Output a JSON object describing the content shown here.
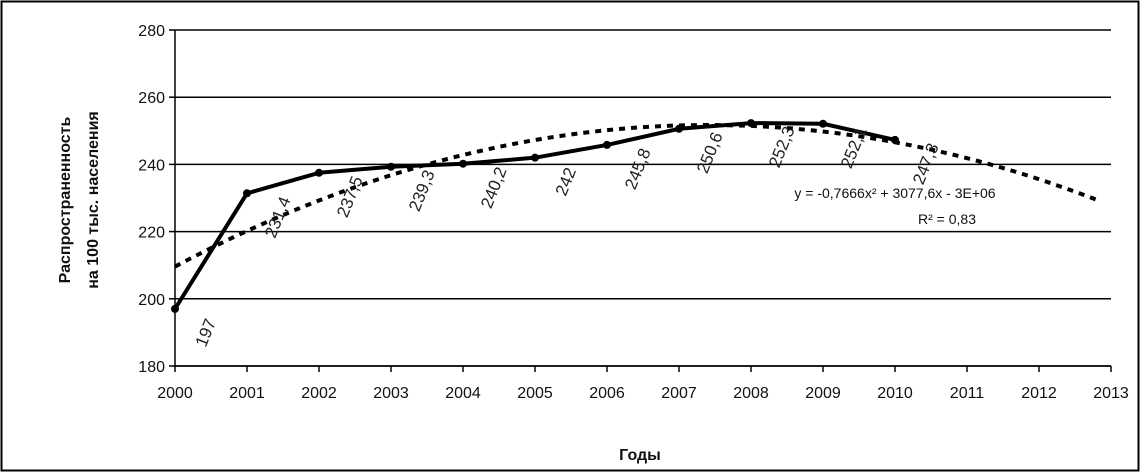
{
  "chart_data": {
    "type": "line",
    "xlabel": "Годы",
    "ylabel_line1": "Распространенность",
    "ylabel_line2": "на 100 тыс. населения",
    "xlim": [
      2000,
      2013
    ],
    "ylim": [
      180,
      280
    ],
    "x_ticks": [
      "2000",
      "2001",
      "2002",
      "2003",
      "2004",
      "2005",
      "2006",
      "2007",
      "2008",
      "2009",
      "2010",
      "2011",
      "2012",
      "2013"
    ],
    "y_ticks": [
      "180",
      "200",
      "220",
      "240",
      "260",
      "280"
    ],
    "grid": true,
    "series": [
      {
        "x": [
          2000,
          2001,
          2002,
          2003,
          2004,
          2005,
          2006,
          2007,
          2008,
          2009,
          2010
        ],
        "values": [
          197,
          231.4,
          237.5,
          239.3,
          240.2,
          242,
          245.8,
          250.6,
          252.3,
          252.1,
          247.3
        ],
        "labels": [
          "197",
          "231,4",
          "237,5",
          "239,3",
          "240,2",
          "242",
          "245,8",
          "250,6",
          "252,3",
          "252,1",
          "247,3"
        ],
        "color": "#000000"
      }
    ],
    "trendline": {
      "type": "polynomial",
      "style": "dotted",
      "x_range": [
        2000,
        2012.8
      ],
      "equation": "y = -0,7666x² + 3077,6x - 3E+06",
      "r_squared": "R² = 0,83"
    }
  }
}
